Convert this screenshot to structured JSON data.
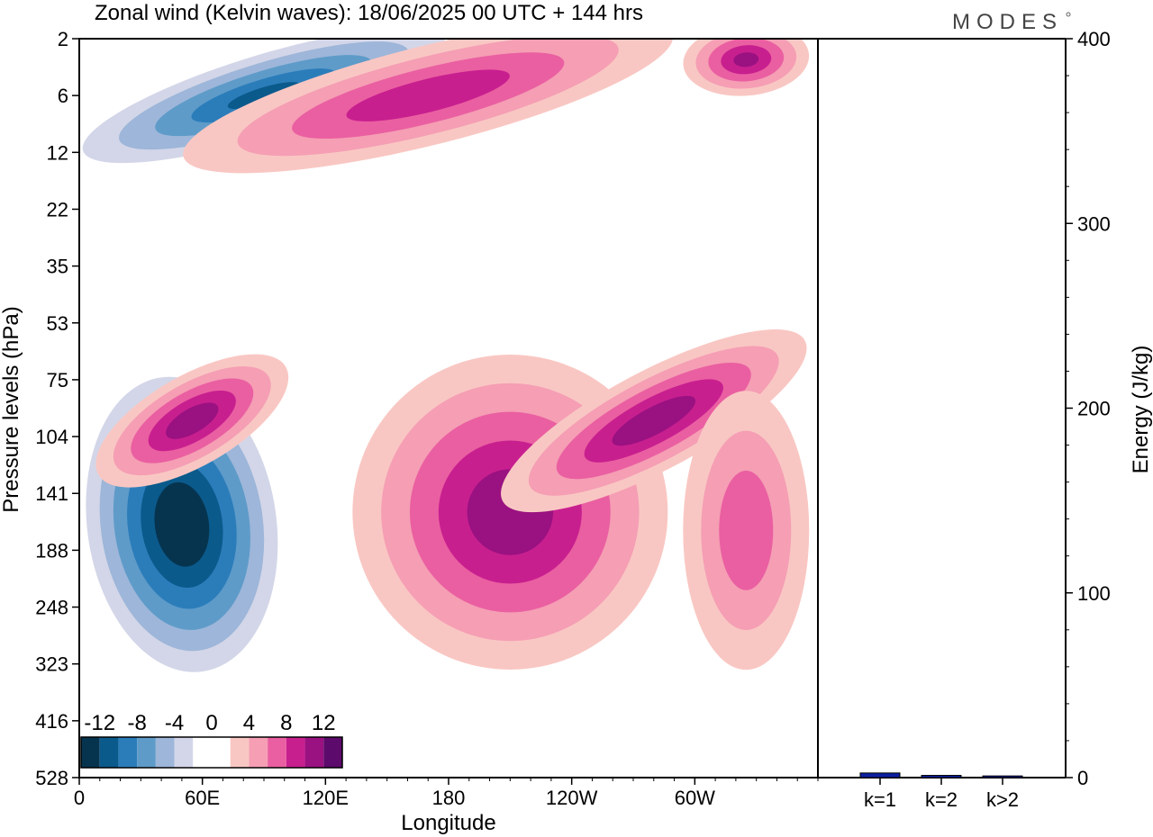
{
  "title": "Zonal wind (Kelvin waves):  18/06/2025  00 UTC  + 144 hrs",
  "brand": "MODES",
  "chart_data": [
    {
      "type": "heatmap",
      "name": "kelvin-wave-hovmoller",
      "xlabel": "Longitude",
      "ylabel": "Pressure levels (hPa)",
      "x_ticks": [
        "0",
        "60E",
        "120E",
        "180",
        "120W",
        "60W"
      ],
      "x_tick_values": [
        0,
        60,
        120,
        180,
        240,
        300
      ],
      "xlim": [
        0,
        360
      ],
      "y_ticks": [
        "2",
        "6",
        "12",
        "22",
        "35",
        "53",
        "75",
        "104",
        "141",
        "188",
        "248",
        "323",
        "416",
        "528"
      ],
      "y_scale": "log-pressure, inverted",
      "colorbar": {
        "tick_labels": [
          "-12",
          "-8",
          "-4",
          "0",
          "4",
          "8",
          "12"
        ],
        "levels": [
          -14,
          -12,
          -10,
          -8,
          -6,
          -4,
          -2,
          0,
          2,
          4,
          6,
          8,
          10,
          12,
          14
        ],
        "colors": [
          "#06344f",
          "#0b5a8c",
          "#2b7dba",
          "#5e9bc9",
          "#9db6d9",
          "#d3d6e8",
          "#ffffff",
          "#ffffff",
          "#f9c7c3",
          "#f59eb4",
          "#ea5fa1",
          "#c81f8f",
          "#9a1181",
          "#5c0a6b"
        ]
      },
      "features": [
        {
          "sign": "negative",
          "center_lon": 50,
          "center_hPa": 165,
          "peak": -14
        },
        {
          "sign": "positive",
          "center_lon": 210,
          "center_hPa": 155,
          "peak": 11
        },
        {
          "sign": "positive",
          "center_lon": 280,
          "center_hPa": 95,
          "peak": 11
        },
        {
          "sign": "positive",
          "center_lon": 55,
          "center_hPa": 95,
          "peak": 11
        },
        {
          "sign": "negative",
          "center_lon": 90,
          "center_hPa": 6,
          "peak": -10
        },
        {
          "sign": "positive",
          "center_lon": 170,
          "center_hPa": 6,
          "peak": 9
        },
        {
          "sign": "positive",
          "center_lon": 325,
          "center_hPa": 3,
          "peak": 10
        },
        {
          "sign": "positive",
          "center_lon": 325,
          "center_hPa": 170,
          "peak": 7
        }
      ]
    },
    {
      "type": "bar",
      "name": "kelvin-wave-energy",
      "ylabel": "Energy (J/kg)",
      "categories": [
        "k=1",
        "k=2",
        "k>2"
      ],
      "values": [
        2.5,
        1.2,
        0.9
      ],
      "ylim": [
        0,
        400
      ],
      "y_ticks": [
        "0",
        "100",
        "200",
        "300",
        "400"
      ],
      "bar_color": "#0b1fa0"
    }
  ]
}
